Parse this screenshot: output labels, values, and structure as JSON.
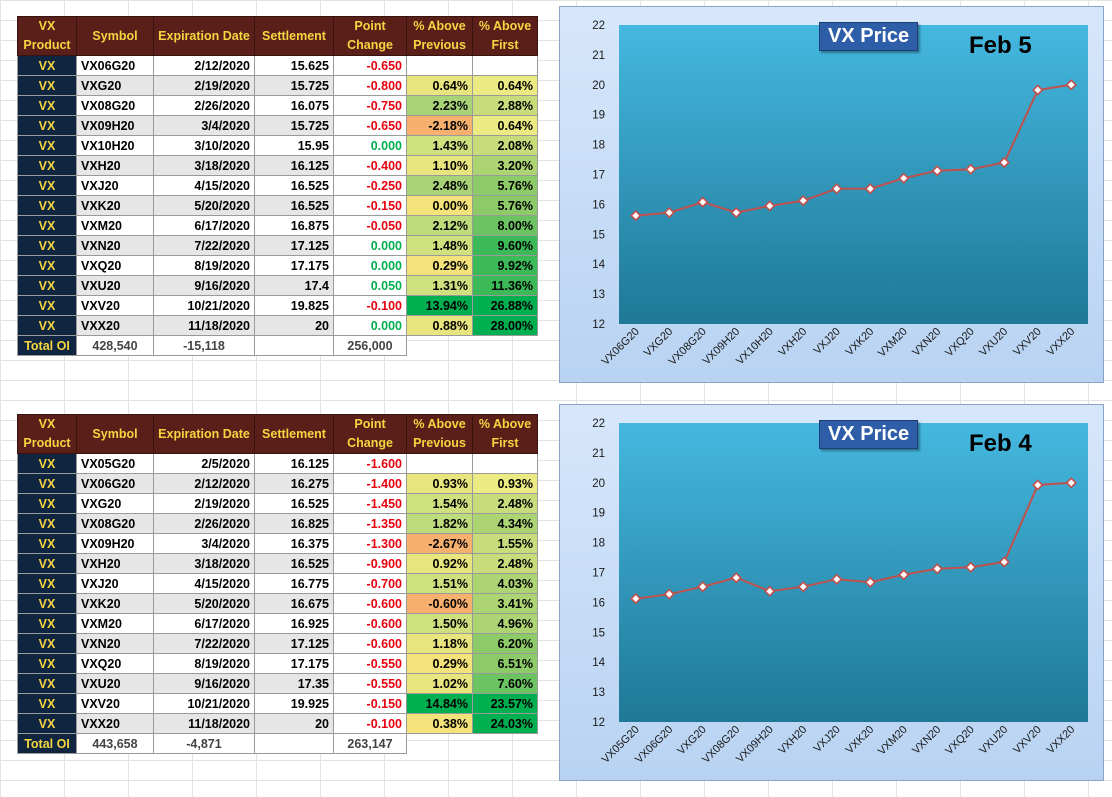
{
  "colors": {
    "header_bg": "#5b1f1a",
    "header_text": "#f5d640",
    "product_bg": "#0f2540",
    "negative": "#e8000e",
    "positive": "#00b050",
    "line": "#c0504d",
    "plot_bg": "#2a92b6"
  },
  "headers": [
    "VX Product",
    "Symbol",
    "Expiration Date",
    "Settlement",
    "Point Change",
    "% Above Previous",
    "% Above First"
  ],
  "tables": [
    {
      "rows": [
        {
          "product": "VX",
          "symbol": "VX06G20",
          "exp": "2/12/2020",
          "settle": "15.625",
          "change": "-0.650",
          "prev": "",
          "first": ""
        },
        {
          "product": "VX",
          "symbol": "VXG20",
          "exp": "2/19/2020",
          "settle": "15.725",
          "change": "-0.800",
          "prev": "0.64%",
          "first": "0.64%"
        },
        {
          "product": "VX",
          "symbol": "VX08G20",
          "exp": "2/26/2020",
          "settle": "16.075",
          "change": "-0.750",
          "prev": "2.23%",
          "first": "2.88%"
        },
        {
          "product": "VX",
          "symbol": "VX09H20",
          "exp": "3/4/2020",
          "settle": "15.725",
          "change": "-0.650",
          "prev": "-2.18%",
          "first": "0.64%"
        },
        {
          "product": "VX",
          "symbol": "VX10H20",
          "exp": "3/10/2020",
          "settle": "15.95",
          "change": "0.000",
          "prev": "1.43%",
          "first": "2.08%"
        },
        {
          "product": "VX",
          "symbol": "VXH20",
          "exp": "3/18/2020",
          "settle": "16.125",
          "change": "-0.400",
          "prev": "1.10%",
          "first": "3.20%"
        },
        {
          "product": "VX",
          "symbol": "VXJ20",
          "exp": "4/15/2020",
          "settle": "16.525",
          "change": "-0.250",
          "prev": "2.48%",
          "first": "5.76%"
        },
        {
          "product": "VX",
          "symbol": "VXK20",
          "exp": "5/20/2020",
          "settle": "16.525",
          "change": "-0.150",
          "prev": "0.00%",
          "first": "5.76%"
        },
        {
          "product": "VX",
          "symbol": "VXM20",
          "exp": "6/17/2020",
          "settle": "16.875",
          "change": "-0.050",
          "prev": "2.12%",
          "first": "8.00%"
        },
        {
          "product": "VX",
          "symbol": "VXN20",
          "exp": "7/22/2020",
          "settle": "17.125",
          "change": "0.000",
          "prev": "1.48%",
          "first": "9.60%"
        },
        {
          "product": "VX",
          "symbol": "VXQ20",
          "exp": "8/19/2020",
          "settle": "17.175",
          "change": "0.000",
          "prev": "0.29%",
          "first": "9.92%"
        },
        {
          "product": "VX",
          "symbol": "VXU20",
          "exp": "9/16/2020",
          "settle": "17.4",
          "change": "0.050",
          "prev": "1.31%",
          "first": "11.36%"
        },
        {
          "product": "VX",
          "symbol": "VXV20",
          "exp": "10/21/2020",
          "settle": "19.825",
          "change": "-0.100",
          "prev": "13.94%",
          "first": "26.88%"
        },
        {
          "product": "VX",
          "symbol": "VXX20",
          "exp": "11/18/2020",
          "settle": "20",
          "change": "0.000",
          "prev": "0.88%",
          "first": "28.00%"
        }
      ],
      "total": {
        "label": "Total OI",
        "oi": "428,540",
        "change": "-15,118",
        "volume": "256,000"
      }
    },
    {
      "rows": [
        {
          "product": "VX",
          "symbol": "VX05G20",
          "exp": "2/5/2020",
          "settle": "16.125",
          "change": "-1.600",
          "prev": "",
          "first": ""
        },
        {
          "product": "VX",
          "symbol": "VX06G20",
          "exp": "2/12/2020",
          "settle": "16.275",
          "change": "-1.400",
          "prev": "0.93%",
          "first": "0.93%"
        },
        {
          "product": "VX",
          "symbol": "VXG20",
          "exp": "2/19/2020",
          "settle": "16.525",
          "change": "-1.450",
          "prev": "1.54%",
          "first": "2.48%"
        },
        {
          "product": "VX",
          "symbol": "VX08G20",
          "exp": "2/26/2020",
          "settle": "16.825",
          "change": "-1.350",
          "prev": "1.82%",
          "first": "4.34%"
        },
        {
          "product": "VX",
          "symbol": "VX09H20",
          "exp": "3/4/2020",
          "settle": "16.375",
          "change": "-1.300",
          "prev": "-2.67%",
          "first": "1.55%"
        },
        {
          "product": "VX",
          "symbol": "VXH20",
          "exp": "3/18/2020",
          "settle": "16.525",
          "change": "-0.900",
          "prev": "0.92%",
          "first": "2.48%"
        },
        {
          "product": "VX",
          "symbol": "VXJ20",
          "exp": "4/15/2020",
          "settle": "16.775",
          "change": "-0.700",
          "prev": "1.51%",
          "first": "4.03%"
        },
        {
          "product": "VX",
          "symbol": "VXK20",
          "exp": "5/20/2020",
          "settle": "16.675",
          "change": "-0.600",
          "prev": "-0.60%",
          "first": "3.41%"
        },
        {
          "product": "VX",
          "symbol": "VXM20",
          "exp": "6/17/2020",
          "settle": "16.925",
          "change": "-0.600",
          "prev": "1.50%",
          "first": "4.96%"
        },
        {
          "product": "VX",
          "symbol": "VXN20",
          "exp": "7/22/2020",
          "settle": "17.125",
          "change": "-0.600",
          "prev": "1.18%",
          "first": "6.20%"
        },
        {
          "product": "VX",
          "symbol": "VXQ20",
          "exp": "8/19/2020",
          "settle": "17.175",
          "change": "-0.550",
          "prev": "0.29%",
          "first": "6.51%"
        },
        {
          "product": "VX",
          "symbol": "VXU20",
          "exp": "9/16/2020",
          "settle": "17.35",
          "change": "-0.550",
          "prev": "1.02%",
          "first": "7.60%"
        },
        {
          "product": "VX",
          "symbol": "VXV20",
          "exp": "10/21/2020",
          "settle": "19.925",
          "change": "-0.150",
          "prev": "14.84%",
          "first": "23.57%"
        },
        {
          "product": "VX",
          "symbol": "VXX20",
          "exp": "11/18/2020",
          "settle": "20",
          "change": "-0.100",
          "prev": "0.38%",
          "first": "24.03%"
        }
      ],
      "total": {
        "label": "Total OI",
        "oi": "443,658",
        "change": "-4,871",
        "volume": "263,147"
      }
    }
  ],
  "chart_data": [
    {
      "type": "line",
      "title": "VX Price",
      "subtitle": "Feb 5",
      "categories": [
        "VX06G20",
        "VXG20",
        "VX08G20",
        "VX09H20",
        "VX10H20",
        "VXH20",
        "VXJ20",
        "VXK20",
        "VXM20",
        "VXN20",
        "VXQ20",
        "VXU20",
        "VXV20",
        "VXX20"
      ],
      "values": [
        15.625,
        15.725,
        16.075,
        15.725,
        15.95,
        16.125,
        16.525,
        16.525,
        16.875,
        17.125,
        17.175,
        17.4,
        19.825,
        20
      ],
      "ylim": [
        12,
        22
      ],
      "yticks": [
        "12",
        "13",
        "14",
        "15",
        "16",
        "17",
        "18",
        "19",
        "20",
        "21",
        "22"
      ],
      "grid": false,
      "legend": "none"
    },
    {
      "type": "line",
      "title": "VX Price",
      "subtitle": "Feb 4",
      "categories": [
        "VX05G20",
        "VX06G20",
        "VXG20",
        "VX08G20",
        "VX09H20",
        "VXH20",
        "VXJ20",
        "VXK20",
        "VXM20",
        "VXN20",
        "VXQ20",
        "VXU20",
        "VXV20",
        "VXX20"
      ],
      "values": [
        16.125,
        16.275,
        16.525,
        16.825,
        16.375,
        16.525,
        16.775,
        16.675,
        16.925,
        17.125,
        17.175,
        17.35,
        19.925,
        20
      ],
      "ylim": [
        12,
        22
      ],
      "yticks": [
        "12",
        "13",
        "14",
        "15",
        "16",
        "17",
        "18",
        "19",
        "20",
        "21",
        "22"
      ],
      "grid": false,
      "legend": "none"
    }
  ]
}
